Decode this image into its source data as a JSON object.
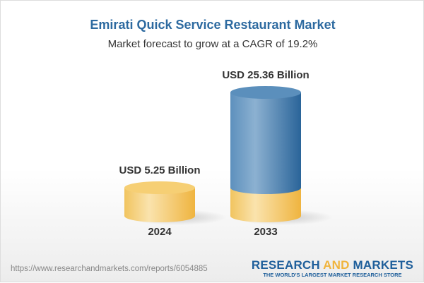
{
  "header": {
    "title": "Emirati Quick Service Restaurant Market",
    "subtitle": "Market forecast to grow at a CAGR of 19.2%"
  },
  "chart_data": {
    "type": "bar",
    "style": "3d-cylinder",
    "categories": [
      "2024",
      "2033"
    ],
    "values": [
      5.25,
      25.36
    ],
    "unit": "USD Billion",
    "data_labels": [
      "USD 5.25 Billion",
      "USD 25.36 Billion"
    ],
    "colors": {
      "base": "#f2c45e",
      "growth": "#3d77ab"
    },
    "grid": false
  },
  "footer": {
    "url": "https://www.researchandmarkets.com/reports/6054885",
    "logo_part1": "RESEARCH ",
    "logo_part2": "AND",
    "logo_part3": " MARKETS",
    "tagline": "THE WORLD'S LARGEST MARKET RESEARCH STORE"
  }
}
